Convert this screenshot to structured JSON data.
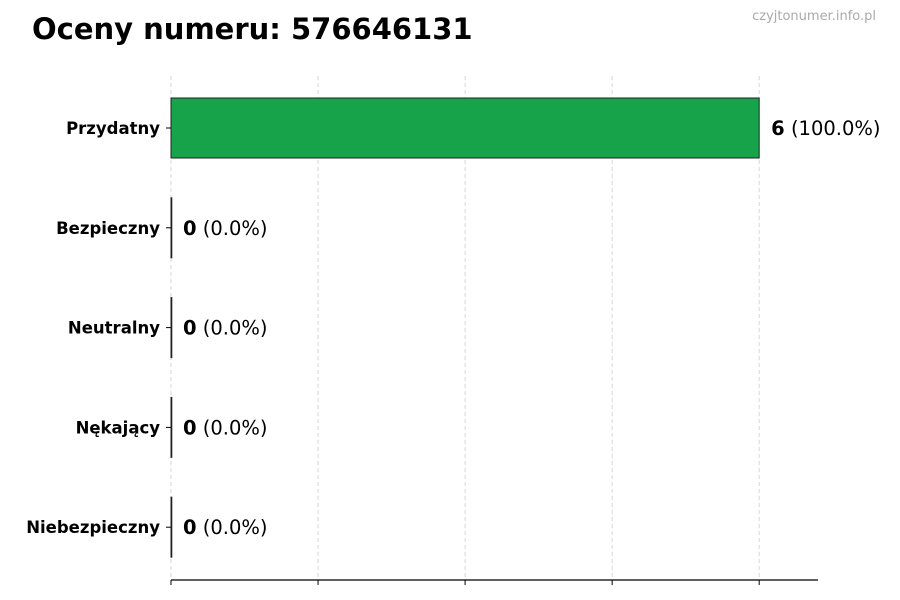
{
  "title": "Oceny numeru: 576646131",
  "watermark": "czyjtonumer.info.pl",
  "chart_data": {
    "type": "bar",
    "orientation": "horizontal",
    "categories": [
      "Przydatny",
      "Bezpieczny",
      "Neutralny",
      "Nękający",
      "Niebezpieczny"
    ],
    "values": [
      6,
      0,
      0,
      0,
      0
    ],
    "labels": [
      "(100.0%)",
      "(0.0%)",
      "(0.0%)",
      "(0.0%)",
      "(0.0%)"
    ],
    "xlim": [
      0,
      6.6
    ],
    "xticks": [
      0,
      1.5,
      3,
      4.5,
      6
    ],
    "grid": true,
    "bar_color": "#16a34a",
    "edge_color": "#222222"
  }
}
